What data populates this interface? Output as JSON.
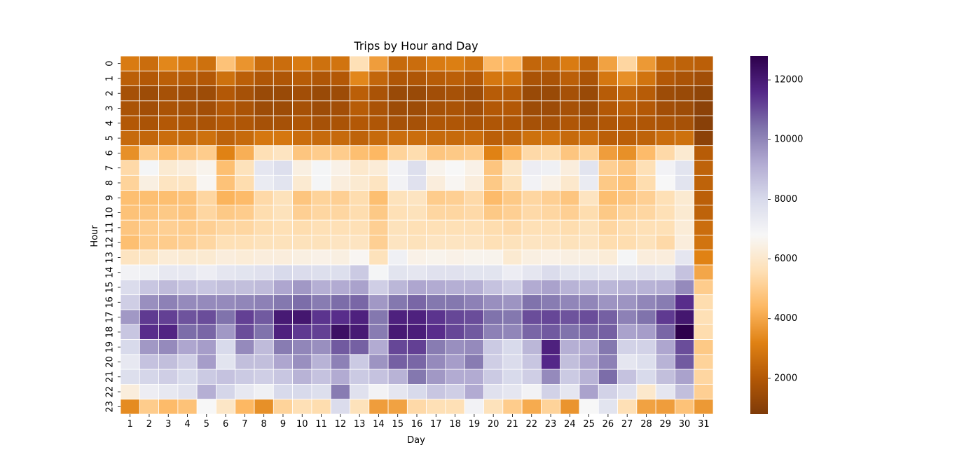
{
  "chart_data": {
    "type": "heatmap",
    "title": "Trips by Hour and Day",
    "xlabel": "Day",
    "ylabel": "Hour",
    "x": [
      "1",
      "2",
      "3",
      "4",
      "5",
      "6",
      "7",
      "8",
      "9",
      "10",
      "11",
      "12",
      "13",
      "14",
      "15",
      "16",
      "17",
      "18",
      "19",
      "20",
      "21",
      "22",
      "23",
      "24",
      "25",
      "26",
      "27",
      "28",
      "29",
      "30",
      "31"
    ],
    "y": [
      "0",
      "1",
      "2",
      "3",
      "4",
      "5",
      "6",
      "7",
      "8",
      "9",
      "10",
      "11",
      "12",
      "13",
      "14",
      "15",
      "16",
      "17",
      "18",
      "19",
      "20",
      "21",
      "22",
      "23"
    ],
    "values": [
      [
        3000,
        2600,
        3300,
        3000,
        2700,
        4700,
        3600,
        2600,
        2600,
        3000,
        2700,
        2800,
        5600,
        3800,
        2500,
        2600,
        3000,
        3100,
        2800,
        4500,
        4400,
        2400,
        2500,
        3000,
        2400,
        3900,
        5300,
        3700,
        2500,
        2300,
        2200
      ],
      [
        2200,
        2000,
        2200,
        2100,
        2000,
        2700,
        2200,
        1900,
        1900,
        2100,
        1900,
        2000,
        3300,
        2400,
        1900,
        1900,
        2100,
        2200,
        2000,
        2900,
        2900,
        1800,
        1800,
        2200,
        1800,
        2900,
        3500,
        2800,
        2000,
        1800,
        1600
      ],
      [
        1700,
        1500,
        1700,
        1600,
        1500,
        2000,
        1700,
        1400,
        1400,
        1600,
        1400,
        1500,
        2200,
        1800,
        1400,
        1400,
        1600,
        1700,
        1500,
        2100,
        2100,
        1400,
        1400,
        1700,
        1400,
        2100,
        2400,
        2100,
        1500,
        1400,
        1200
      ],
      [
        1800,
        1600,
        1800,
        1700,
        1600,
        2000,
        1800,
        1500,
        1500,
        1700,
        1500,
        1600,
        2100,
        1800,
        1500,
        1500,
        1700,
        1800,
        1600,
        2000,
        2000,
        1500,
        1500,
        1700,
        1500,
        2000,
        2200,
        2000,
        1600,
        1500,
        1100
      ],
      [
        2000,
        1800,
        2000,
        1900,
        1800,
        2000,
        1900,
        1700,
        1700,
        1900,
        1700,
        1800,
        2000,
        1900,
        1700,
        1700,
        1900,
        1900,
        1800,
        1900,
        1900,
        1700,
        1700,
        1900,
        1700,
        1900,
        2000,
        1900,
        1800,
        1700,
        1000
      ],
      [
        2500,
        2400,
        2600,
        2500,
        2700,
        2300,
        2500,
        2900,
        2900,
        2600,
        2500,
        2500,
        2300,
        2500,
        2600,
        2600,
        2500,
        2500,
        2600,
        2200,
        2300,
        2700,
        2800,
        2500,
        2600,
        2200,
        2200,
        2300,
        2600,
        2700,
        1100
      ],
      [
        3500,
        5000,
        4600,
        4800,
        5000,
        3200,
        4200,
        5600,
        5800,
        4800,
        5000,
        5000,
        4600,
        4400,
        5200,
        5500,
        4800,
        4900,
        5000,
        3200,
        4300,
        5400,
        5500,
        4800,
        5200,
        3800,
        3500,
        4500,
        5400,
        6100,
        2100
      ],
      [
        5400,
        6900,
        6100,
        6300,
        6600,
        4600,
        5700,
        7500,
        7800,
        6400,
        6900,
        6500,
        6000,
        6200,
        7000,
        7800,
        6600,
        6800,
        6500,
        4800,
        5900,
        7200,
        7100,
        6300,
        7600,
        5100,
        4800,
        5600,
        7000,
        7600,
        2300
      ],
      [
        5200,
        6400,
        5800,
        5800,
        6700,
        4700,
        5500,
        7300,
        7600,
        6100,
        6900,
        6300,
        6100,
        5800,
        7000,
        7700,
        6300,
        6700,
        6300,
        4900,
        5700,
        7000,
        6500,
        6000,
        7300,
        4900,
        4700,
        5500,
        6800,
        7600,
        2300
      ],
      [
        4600,
        4600,
        4600,
        4700,
        5300,
        4300,
        4500,
        5400,
        5700,
        4800,
        5200,
        5100,
        5500,
        4600,
        5700,
        5800,
        5000,
        5100,
        5400,
        4500,
        4900,
        5300,
        5100,
        4800,
        5800,
        4600,
        4800,
        5100,
        5600,
        6100,
        2200
      ],
      [
        4700,
        4800,
        4900,
        4800,
        5300,
        4900,
        5000,
        5500,
        5700,
        5100,
        5300,
        5300,
        5500,
        4900,
        5600,
        5700,
        5300,
        5300,
        5400,
        4900,
        5100,
        5400,
        5300,
        5100,
        5500,
        4900,
        5200,
        5300,
        5600,
        6100,
        2300
      ],
      [
        4800,
        5000,
        5100,
        5000,
        5100,
        5300,
        5300,
        5500,
        5600,
        5500,
        5600,
        5600,
        5600,
        5100,
        5700,
        5600,
        5600,
        5600,
        5600,
        5500,
        5400,
        5600,
        5600,
        5500,
        5700,
        5300,
        5500,
        5600,
        5600,
        6200,
        2600
      ],
      [
        4600,
        5000,
        5000,
        5100,
        5300,
        5600,
        5600,
        5700,
        5700,
        5700,
        5700,
        5800,
        5800,
        5100,
        5800,
        5700,
        5800,
        5800,
        5800,
        5600,
        5700,
        5800,
        5800,
        5700,
        5800,
        5500,
        5500,
        5700,
        5400,
        6300,
        2800
      ],
      [
        5800,
        5900,
        6200,
        6100,
        6100,
        6300,
        6200,
        6300,
        6300,
        6400,
        6500,
        6400,
        6700,
        5700,
        7100,
        6500,
        6600,
        6500,
        6600,
        6600,
        6100,
        6400,
        6500,
        6400,
        6400,
        6200,
        6900,
        6300,
        6300,
        7500,
        3200
      ],
      [
        7000,
        7100,
        7400,
        7400,
        7200,
        7500,
        7600,
        7700,
        8000,
        7900,
        7800,
        7800,
        8400,
        6900,
        7600,
        7500,
        7700,
        7700,
        7600,
        7600,
        7200,
        7500,
        7900,
        7600,
        7600,
        7500,
        7600,
        7700,
        7600,
        8600,
        4000
      ],
      [
        7900,
        8500,
        8800,
        8600,
        8500,
        8700,
        8700,
        8800,
        9300,
        9600,
        9100,
        9200,
        9400,
        8300,
        8900,
        9300,
        9200,
        9100,
        9100,
        8600,
        8300,
        9200,
        9400,
        9000,
        8900,
        8900,
        9000,
        9000,
        9100,
        9900,
        5000
      ],
      [
        8300,
        9800,
        10100,
        9900,
        9900,
        9900,
        10000,
        10100,
        10300,
        10500,
        10200,
        10500,
        10600,
        9600,
        10300,
        10600,
        10300,
        10300,
        10100,
        9800,
        9700,
        10400,
        10200,
        10000,
        10000,
        9700,
        9700,
        10000,
        10200,
        11500,
        5500
      ],
      [
        9600,
        11300,
        11200,
        10900,
        11000,
        10400,
        11200,
        10800,
        12000,
        12100,
        11400,
        11500,
        11800,
        10300,
        11800,
        11800,
        11400,
        11100,
        11000,
        10400,
        10300,
        11000,
        11100,
        10900,
        11000,
        10700,
        10100,
        10400,
        11300,
        12100,
        5600
      ],
      [
        8500,
        11500,
        11700,
        10500,
        10600,
        9600,
        11000,
        10400,
        11800,
        11300,
        11200,
        12300,
        12000,
        10200,
        12000,
        11900,
        11500,
        11100,
        10800,
        10100,
        10000,
        10600,
        10800,
        10400,
        10600,
        10700,
        9400,
        9500,
        10600,
        12800,
        5500
      ],
      [
        8000,
        9600,
        9900,
        9300,
        9500,
        8000,
        9900,
        8800,
        10200,
        10000,
        9800,
        10800,
        10700,
        9200,
        11100,
        11200,
        10200,
        9800,
        9900,
        8400,
        8000,
        8900,
        11800,
        9100,
        9200,
        10300,
        8200,
        8200,
        9300,
        11000,
        4900
      ],
      [
        7400,
        8600,
        8700,
        8300,
        9500,
        7600,
        8700,
        8700,
        9300,
        9800,
        9000,
        10100,
        8400,
        9700,
        10700,
        10600,
        9900,
        9500,
        10200,
        8300,
        7900,
        8500,
        11600,
        8700,
        9300,
        10100,
        7500,
        7800,
        9000,
        10800,
        5200
      ],
      [
        7800,
        8100,
        8300,
        8000,
        8400,
        8600,
        8400,
        8300,
        8500,
        9000,
        8600,
        9200,
        8400,
        8600,
        9000,
        10300,
        9600,
        9200,
        9200,
        8400,
        8000,
        8300,
        9900,
        8400,
        9000,
        10500,
        8600,
        8000,
        8700,
        9400,
        5300
      ],
      [
        6300,
        7200,
        7400,
        7700,
        9100,
        8100,
        7400,
        7100,
        8000,
        8000,
        7800,
        10200,
        7700,
        7000,
        7500,
        8000,
        8500,
        8300,
        9200,
        7700,
        7500,
        7000,
        8200,
        7500,
        9400,
        8200,
        7700,
        6000,
        7500,
        8700,
        5100
      ],
      [
        3400,
        5000,
        4500,
        4700,
        6800,
        5900,
        4400,
        3500,
        5200,
        5600,
        5500,
        7900,
        5700,
        3800,
        3900,
        5400,
        5600,
        5600,
        7000,
        5700,
        5000,
        4100,
        5200,
        3600,
        6800,
        7600,
        5600,
        3900,
        3800,
        4700,
        3700
      ]
    ],
    "colorbar": {
      "colormap": "PuOr",
      "range": [
        800,
        12800
      ],
      "ticks": [
        2000,
        4000,
        6000,
        8000,
        10000,
        12000
      ],
      "tick_labels": [
        "2000",
        "4000",
        "6000",
        "8000",
        "10000",
        "12000"
      ]
    },
    "grid": true,
    "legend": "colorbar-right"
  }
}
